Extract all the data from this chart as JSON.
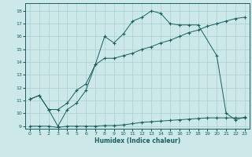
{
  "xlabel": "Humidex (Indice chaleur)",
  "background_color": "#cce8e8",
  "grid_color": "#aacece",
  "line_color": "#1a6060",
  "xlim": [
    -0.5,
    23.5
  ],
  "ylim": [
    8.8,
    18.6
  ],
  "xticks": [
    0,
    1,
    2,
    3,
    4,
    5,
    6,
    7,
    8,
    9,
    10,
    11,
    12,
    13,
    14,
    15,
    16,
    17,
    18,
    19,
    20,
    21,
    22,
    23
  ],
  "yticks": [
    9,
    10,
    11,
    12,
    13,
    14,
    15,
    16,
    17,
    18
  ],
  "line1_x": [
    0,
    1,
    2,
    3,
    4,
    5,
    6,
    7,
    8,
    9,
    10,
    11,
    12,
    13,
    14,
    15,
    16,
    17,
    18,
    19,
    20,
    21,
    22,
    23
  ],
  "line1_y": [
    11.1,
    11.4,
    10.3,
    10.3,
    10.8,
    11.8,
    12.3,
    13.8,
    14.3,
    14.3,
    14.5,
    14.7,
    15.0,
    15.2,
    15.5,
    15.7,
    16.0,
    16.3,
    16.5,
    16.8,
    17.0,
    17.2,
    17.4,
    17.5
  ],
  "line2_x": [
    0,
    1,
    2,
    3,
    4,
    5,
    6,
    7,
    8,
    9,
    10,
    11,
    12,
    13,
    14,
    15,
    16,
    17,
    18,
    20,
    21,
    22,
    23
  ],
  "line2_y": [
    11.1,
    11.4,
    10.3,
    9.0,
    10.3,
    10.8,
    11.8,
    13.8,
    16.0,
    15.5,
    16.2,
    17.2,
    17.5,
    18.0,
    17.8,
    17.0,
    16.9,
    16.9,
    16.9,
    14.5,
    10.0,
    9.5,
    9.7
  ],
  "line3_x": [
    0,
    1,
    2,
    3,
    4,
    5,
    6,
    7,
    8,
    9,
    10,
    11,
    12,
    13,
    14,
    15,
    16,
    17,
    18,
    19,
    20,
    21,
    22,
    23
  ],
  "line3_y": [
    9.0,
    9.0,
    9.0,
    8.9,
    9.0,
    9.0,
    9.0,
    9.0,
    9.05,
    9.05,
    9.1,
    9.2,
    9.3,
    9.35,
    9.4,
    9.45,
    9.5,
    9.55,
    9.6,
    9.65,
    9.65,
    9.65,
    9.65,
    9.65
  ]
}
